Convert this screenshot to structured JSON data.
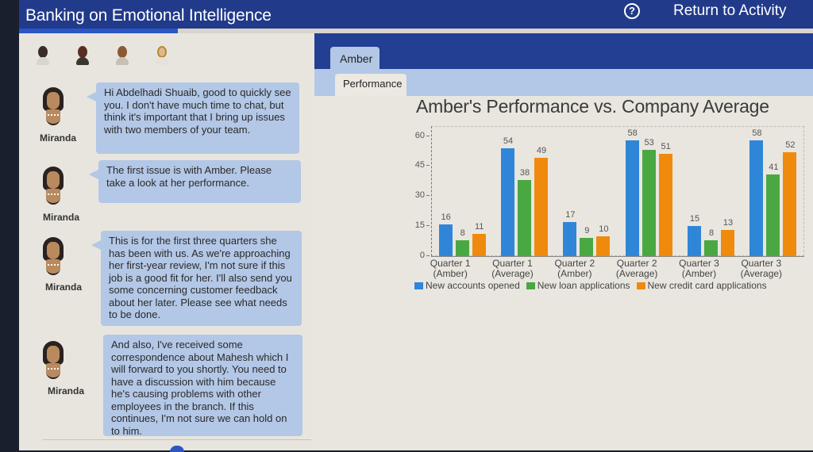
{
  "header": {
    "app_title": "Banking on Emotional Intelligence",
    "help_icon": "question-circle-icon",
    "return_label": "Return to Activity",
    "progress_percent": 20
  },
  "colors": {
    "header_bg": "#213a8a",
    "accent": "#2b56c4",
    "bubble_bg": "#b3c7e6",
    "series_blue": "#2f86d9",
    "series_green": "#4aa843",
    "series_orange": "#f08a0c"
  },
  "chat": {
    "character_avatars": [
      "miranda-avatar",
      "character-2-avatar",
      "character-3-avatar",
      "character-4-avatar"
    ],
    "messages": [
      {
        "speaker": "Miranda",
        "text": "Hi Abdelhadi Shuaib, good to quickly see you. I don't have much time to chat, but think it's important that I bring up issues with two members of your team."
      },
      {
        "speaker": "Miranda",
        "text": "The first issue is with Amber. Please take a look at her performance."
      },
      {
        "speaker": "Miranda",
        "text": "This is for the first three quarters she has been with us. As we're approaching her first-year review, I'm not sure if this job is a good fit for her. I'll also send you some concerning customer feedback about her later. Please see what needs to be done."
      },
      {
        "speaker": "Miranda",
        "text": "And also, I've received some correspondence about Mahesh which I will forward to you shortly. You need to have a discussion with him because he's causing problems with other employees in the branch. If this continues, I'm not sure we can hold on to him."
      }
    ]
  },
  "panel": {
    "tabs": [
      {
        "label": "Amber",
        "active": true
      }
    ],
    "subtabs": [
      {
        "label": "Performance",
        "active": true
      }
    ]
  },
  "chart_data": {
    "type": "bar",
    "title": "Amber's Performance vs. Company Average",
    "categories": [
      "Quarter 1 (Amber)",
      "Quarter 1 (Average)",
      "Quarter 2 (Amber)",
      "Quarter 2 (Average)",
      "Quarter 3 (Amber)",
      "Quarter 3 (Average)"
    ],
    "category_lines": [
      [
        "Quarter 1",
        "(Amber)"
      ],
      [
        "Quarter 1",
        "(Average)"
      ],
      [
        "Quarter 2",
        "(Amber)"
      ],
      [
        "Quarter 2",
        "(Average)"
      ],
      [
        "Quarter 3",
        "(Amber)"
      ],
      [
        "Quarter 3",
        "(Average)"
      ]
    ],
    "series": [
      {
        "name": "New accounts opened",
        "color": "#2f86d9",
        "values": [
          16,
          54,
          17,
          58,
          15,
          58
        ]
      },
      {
        "name": "New loan applications",
        "color": "#4aa843",
        "values": [
          8,
          38,
          9,
          53,
          8,
          41
        ]
      },
      {
        "name": "New credit card applications",
        "color": "#f08a0c",
        "values": [
          11,
          49,
          10,
          51,
          13,
          52
        ]
      }
    ],
    "xlabel": "",
    "ylabel": "",
    "yticks": [
      0,
      15,
      30,
      45,
      60
    ],
    "ylim": [
      0,
      65
    ],
    "grid": false,
    "legend_position": "bottom"
  }
}
